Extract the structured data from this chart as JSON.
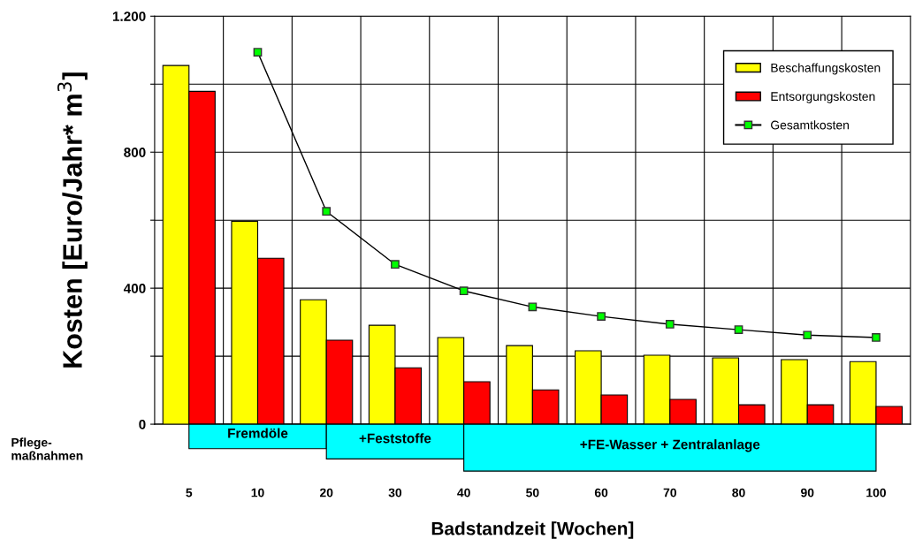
{
  "chart_data": {
    "type": "bar",
    "xlabel": "Badstandzeit [Wochen]",
    "ylabel": "Kosten [Euro/Jahr* m$^{3}$]",
    "categories": [
      "5",
      "10",
      "20",
      "30",
      "40",
      "50",
      "60",
      "70",
      "80",
      "90",
      "100"
    ],
    "series": [
      {
        "name": "Beschaffungskosten",
        "color": "#ffff00",
        "values": [
          1055,
          597,
          366,
          291,
          255,
          231,
          216,
          203,
          195,
          190,
          184
        ]
      },
      {
        "name": "Entsorgungskosten",
        "color": "#ff0000",
        "values": [
          979,
          488,
          247,
          166,
          125,
          101,
          86,
          73,
          57,
          57,
          52
        ]
      },
      {
        "name": "Gesamtkosten",
        "type": "line",
        "color": "#00ff00",
        "marker": "square",
        "values": [
          null,
          1094,
          626,
          470,
          392,
          345,
          317,
          294,
          278,
          262,
          255
        ]
      }
    ],
    "ylim": [
      0,
      1200
    ],
    "yticks": [
      0,
      {
        "value": 200,
        "label": null
      },
      400,
      {
        "value": 600,
        "label": null
      },
      800,
      {
        "value": 1000,
        "label": null
      },
      {
        "value": 1200,
        "label": "1.200"
      }
    ],
    "grid": true,
    "legend": "top right",
    "annotations": [
      "Pflege-\nmaßnahmen",
      "Fremdöle",
      "+Feststoffe",
      "+FE-Wasser + Zentralanlage"
    ]
  }
}
